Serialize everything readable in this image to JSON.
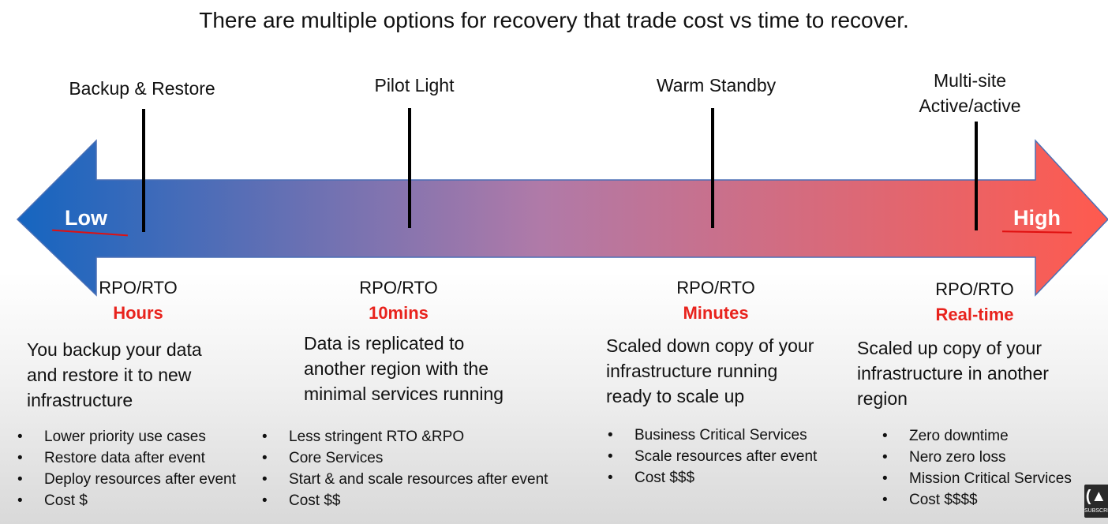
{
  "title": "There are multiple options for recovery that trade cost vs time to recover.",
  "arrow": {
    "low_label": "Low",
    "high_label": "High"
  },
  "options": [
    {
      "name": "Backup & Restore",
      "rpo_label": "RPO/RTO",
      "rpo_value": "Hours",
      "description": [
        "You backup your data",
        "and restore it to new",
        "infrastructure"
      ],
      "bullets": [
        "Lower priority use cases",
        "Restore data after event",
        "Deploy resources after event",
        "Cost $"
      ]
    },
    {
      "name": "Pilot Light",
      "rpo_label": "RPO/RTO",
      "rpo_value": "10mins",
      "description": [
        "Data is replicated to",
        "another region with the",
        "minimal services running"
      ],
      "bullets": [
        "Less stringent RTO &RPO",
        "Core Services",
        "Start & and scale resources after event",
        "Cost $$"
      ]
    },
    {
      "name": "Warm Standby",
      "rpo_label": "RPO/RTO",
      "rpo_value": "Minutes",
      "description": [
        "Scaled down copy of your",
        "infrastructure running",
        "ready to scale up"
      ],
      "bullets": [
        "Business Critical Services",
        "Scale resources after event",
        "Cost $$$"
      ]
    },
    {
      "name_lines": [
        "Multi-site",
        "Active/active"
      ],
      "rpo_label": "RPO/RTO",
      "rpo_value": "Real-time",
      "description": [
        "Scaled up copy of your",
        "infrastructure in another",
        "region"
      ],
      "bullets": [
        "Zero downtime",
        "Nero zero loss",
        "Mission Critical Services",
        "Cost $$$$"
      ]
    }
  ],
  "colors": {
    "arrow_left": "#1565c0",
    "arrow_mid": "#b07aa8",
    "arrow_right": "#ff5a4e",
    "accent_red": "#e8231d"
  },
  "logo_text": "SUBSCRI"
}
